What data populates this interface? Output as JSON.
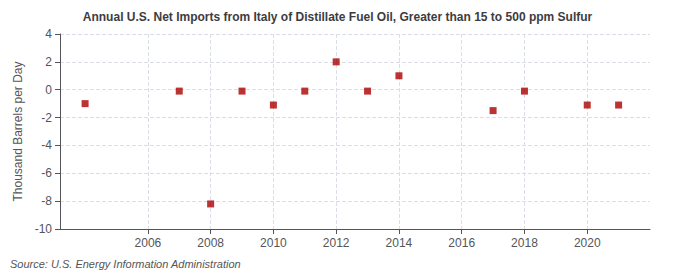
{
  "chart_data": {
    "type": "scatter",
    "title": "Annual U.S. Net Imports from Italy of Distillate Fuel Oil, Greater than 15 to 500 ppm Sulfur",
    "ylabel": "Thousand Barrels per Day",
    "source": "Source: U.S. Energy Information Administration",
    "x": [
      2004,
      2007,
      2008,
      2009,
      2010,
      2011,
      2012,
      2013,
      2014,
      2017,
      2018,
      2020,
      2021
    ],
    "values": [
      -1.0,
      -0.1,
      -8.2,
      -0.1,
      -1.1,
      -0.1,
      2.0,
      -0.1,
      1.0,
      -1.5,
      -0.1,
      -1.1,
      -1.1
    ],
    "color": "#aa0000",
    "marker": "square",
    "xlim": [
      2003.2,
      2022.0
    ],
    "ylim": [
      -10,
      4
    ],
    "xticks": [
      2006,
      2008,
      2010,
      2012,
      2014,
      2016,
      2018,
      2020
    ],
    "yticks": [
      -10,
      -8,
      -6,
      -4,
      -2,
      0,
      2,
      4
    ],
    "grid": true
  }
}
